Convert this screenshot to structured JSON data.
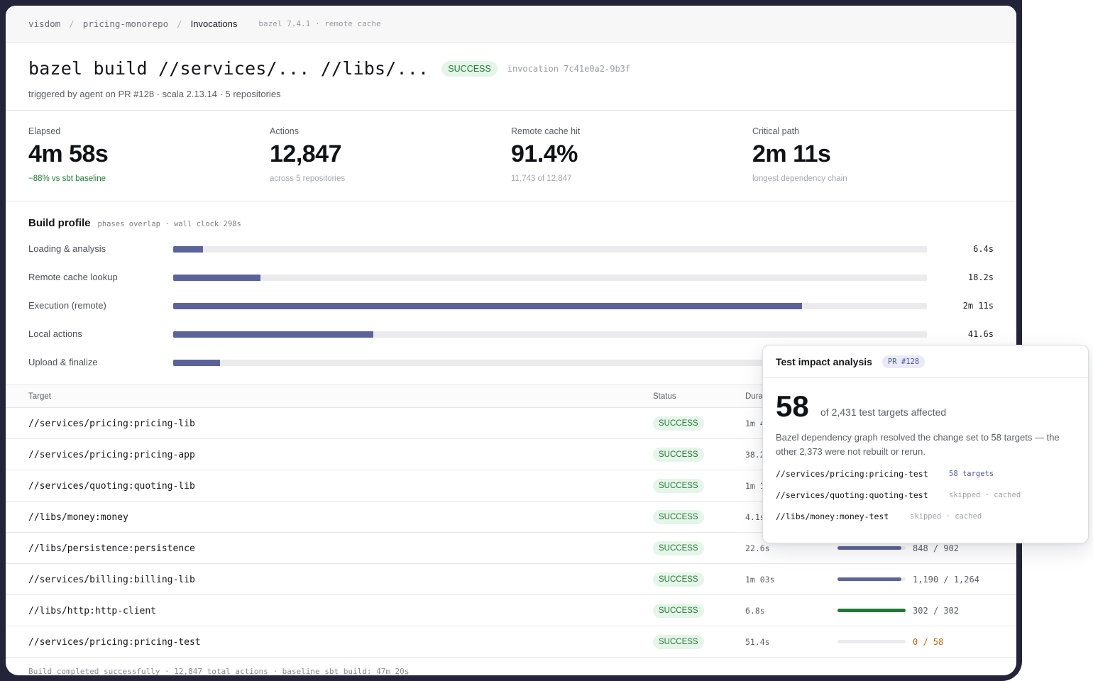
{
  "breadcrumb": {
    "items": [
      "visdom",
      "pricing-monorepo",
      "Invocations"
    ],
    "meta": "bazel 7.4.1 · remote cache"
  },
  "header": {
    "command": "bazel build //services/... //libs/...",
    "status": "SUCCESS",
    "invocation": "invocation 7c41e0a2-9b3f",
    "subtitle": "triggered by agent on PR #128 · scala 2.13.14 · 5 repositories"
  },
  "stats": [
    {
      "label": "Elapsed",
      "value": "4m 58s",
      "note": "−88% vs sbt baseline"
    },
    {
      "label": "Actions",
      "value": "12,847",
      "note": "across 5 repositories"
    },
    {
      "label": "Remote cache hit",
      "value": "91.4%",
      "note": "11,743 of 12,847"
    },
    {
      "label": "Critical path",
      "value": "2m 11s",
      "note": "longest dependency chain"
    }
  ],
  "profile": {
    "title": "Build profile",
    "meta": "phases overlap · wall clock 298s",
    "phases": [
      {
        "label": "Loading & analysis",
        "value": "6.4s",
        "fraction": 0.04
      },
      {
        "label": "Remote cache lookup",
        "value": "18.2s",
        "fraction": 0.116
      },
      {
        "label": "Execution (remote)",
        "value": "2m 11s",
        "fraction": 0.834
      },
      {
        "label": "Local actions",
        "value": "41.6s",
        "fraction": 0.266
      },
      {
        "label": "Upload & finalize",
        "value": "",
        "fraction": 0.062
      }
    ]
  },
  "table": {
    "headers": {
      "target": "Target",
      "status": "Status",
      "duration": "Dura"
    },
    "rows": [
      {
        "target": "//services/pricing:pricing-lib",
        "status": "SUCCESS",
        "duration": "1m 4",
        "coverage": "",
        "coverage_fraction": null
      },
      {
        "target": "//services/pricing:pricing-app",
        "status": "SUCCESS",
        "duration": "38.2",
        "coverage": "",
        "coverage_fraction": null
      },
      {
        "target": "//services/quoting:quoting-lib",
        "status": "SUCCESS",
        "duration": "1m 1",
        "coverage": "",
        "coverage_fraction": null
      },
      {
        "target": "//libs/money:money",
        "status": "SUCCESS",
        "duration": "4.1s",
        "coverage": "",
        "coverage_fraction": null
      },
      {
        "target": "//libs/persistence:persistence",
        "status": "SUCCESS",
        "duration": "22.6s",
        "coverage": "848 / 902",
        "coverage_fraction": 0.94
      },
      {
        "target": "//services/billing:billing-lib",
        "status": "SUCCESS",
        "duration": "1m 03s",
        "coverage": "1,190 / 1,264",
        "coverage_fraction": 0.94
      },
      {
        "target": "//libs/http:http-client",
        "status": "SUCCESS",
        "duration": "6.8s",
        "coverage": "302 / 302",
        "coverage_fraction": 1.0
      },
      {
        "target": "//services/pricing:pricing-test",
        "status": "SUCCESS",
        "duration": "51.4s",
        "coverage": "0 / 58",
        "coverage_fraction": 0.0
      }
    ]
  },
  "footer": "Build completed successfully · 12,847 total actions · baseline sbt build: 47m 20s",
  "panel": {
    "title": "Test impact analysis",
    "badge": "PR #128",
    "big_number": "58",
    "big_note": "of 2,431 test targets affected",
    "description": "Bazel dependency graph resolved the change set to 58 targets — the other 2,373 were not rebuilt or rerun.",
    "targets": [
      {
        "name": "//services/pricing:pricing-test",
        "tag": "58 targets"
      },
      {
        "name": "//services/quoting:quoting-test",
        "tag": "skipped · cached"
      },
      {
        "name": "//libs/money:money-test",
        "tag": "skipped · cached"
      }
    ]
  },
  "colors": {
    "bar": "#5c6399",
    "success_bg": "#e6f5e9",
    "success_text": "#237a36",
    "warn": "#c2630a",
    "frame": "#23243a"
  }
}
